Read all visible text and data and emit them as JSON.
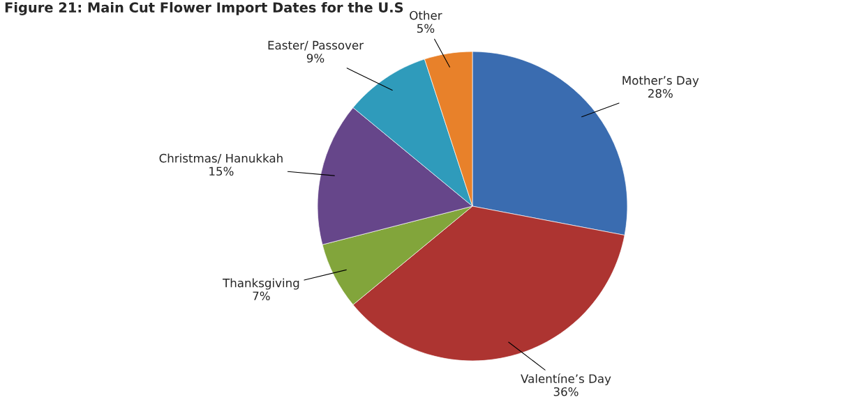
{
  "chart_data": {
    "type": "pie",
    "title": "Figure 21: Main Cut Flower Import Dates for the U.S",
    "categories": [
      "Mother’s Day",
      "Valentíne’s Day",
      "Thanksgiving",
      "Christmas/ Hanukkah",
      "Easter/ Passover",
      "Other"
    ],
    "values": [
      28,
      36,
      7,
      15,
      9,
      5
    ],
    "value_labels": [
      "28%",
      "36%",
      "7%",
      "15%",
      "9%",
      "5%"
    ],
    "colors": [
      "#3a6cb0",
      "#ad3431",
      "#82a53b",
      "#66468a",
      "#2f9bbb",
      "#e8812a"
    ],
    "legend": false
  }
}
